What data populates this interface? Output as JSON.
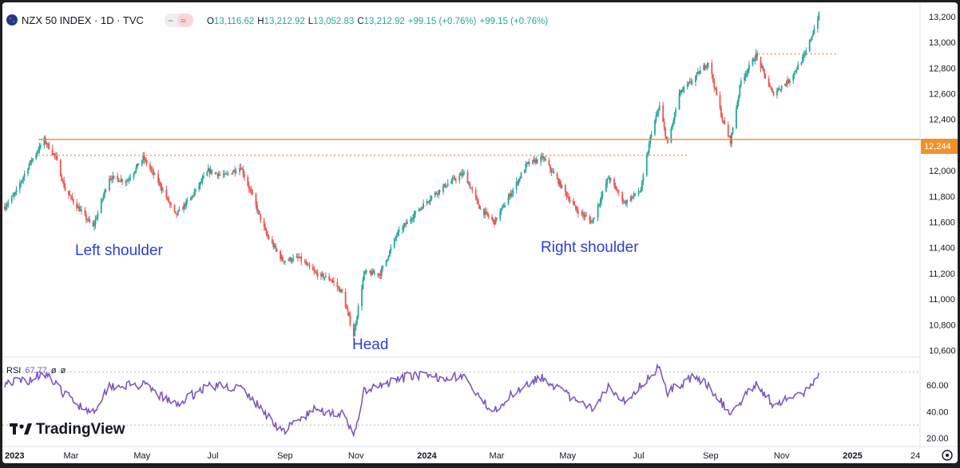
{
  "header": {
    "symbol": "NZX 50 INDEX · 1D · TVC",
    "open_label": "O",
    "open": "13,116.62",
    "high_label": "H",
    "high": "13,212.92",
    "low_label": "L",
    "low": "13,052.83",
    "close_label": "C",
    "close": "13,212.92",
    "change": "+99.15 (+0.76%)",
    "change2": "+99.15 (+0.76%)",
    "flag_icon": "new-zealand-flag-icon"
  },
  "rsi": {
    "label": "RSI",
    "value": "67.77",
    "extra1": "ø",
    "extra2": "ø",
    "color": "#7e57c2"
  },
  "branding": {
    "logo_text": "TradingView"
  },
  "colors": {
    "up": "#26a69a",
    "down": "#ef5350",
    "level_line": "#f0922b",
    "annotation": "#2b3fd6"
  },
  "price_badge": "12,244",
  "annotations": {
    "left_shoulder": "Left shoulder",
    "head": "Head",
    "right_shoulder": "Right shoulder"
  },
  "chart_data": [
    {
      "type": "candlestick",
      "title": "NZX 50 INDEX · 1D · TVC",
      "x_range": [
        "2023-01-01",
        "2025-02-28"
      ],
      "y_range": [
        10560,
        13280
      ],
      "y_ticks": [
        "13,200",
        "13,000",
        "12,800",
        "12,600",
        "12,400",
        "12,200",
        "12,000",
        "11,800",
        "11,600",
        "11,400",
        "11,200",
        "11,000",
        "10,800",
        "10,600"
      ],
      "y_tick_values": [
        13200,
        13000,
        12800,
        12600,
        12400,
        12200,
        12000,
        11800,
        11600,
        11400,
        11200,
        11000,
        10800,
        10600
      ],
      "x_ticks": [
        {
          "label": "2023",
          "date": "2023-01-01",
          "bold": true
        },
        {
          "label": "Mar",
          "date": "2023-03-01",
          "bold": false
        },
        {
          "label": "May",
          "date": "2023-05-01",
          "bold": false
        },
        {
          "label": "Jul",
          "date": "2023-07-01",
          "bold": false
        },
        {
          "label": "Sep",
          "date": "2023-09-01",
          "bold": false
        },
        {
          "label": "Nov",
          "date": "2023-11-01",
          "bold": false
        },
        {
          "label": "2024",
          "date": "2024-01-01",
          "bold": true
        },
        {
          "label": "Mar",
          "date": "2024-03-01",
          "bold": false
        },
        {
          "label": "May",
          "date": "2024-05-01",
          "bold": false
        },
        {
          "label": "Jul",
          "date": "2024-07-01",
          "bold": false
        },
        {
          "label": "Sep",
          "date": "2024-09-01",
          "bold": false
        },
        {
          "label": "Nov",
          "date": "2024-11-01",
          "bold": false
        },
        {
          "label": "2025",
          "date": "2025-01-01",
          "bold": true
        },
        {
          "label": "24",
          "date": "2025-02-24",
          "bold": false
        }
      ],
      "levels": [
        {
          "value": 12244,
          "style": "solid",
          "from": "2023-02-01",
          "to": "2025-02-28",
          "badge": "12,244"
        },
        {
          "value": 12120,
          "style": "dotted",
          "from": "2023-02-01",
          "to": "2024-08-12"
        },
        {
          "value": 12910,
          "style": "dotted",
          "from": "2024-10-12",
          "to": "2024-12-20"
        }
      ],
      "price_path": [
        [
          "2023-01-03",
          11720
        ],
        [
          "2023-01-12",
          11820
        ],
        [
          "2023-01-24",
          12050
        ],
        [
          "2023-02-06",
          12240
        ],
        [
          "2023-02-16",
          12100
        ],
        [
          "2023-02-24",
          11850
        ],
        [
          "2023-03-08",
          11700
        ],
        [
          "2023-03-20",
          11560
        ],
        [
          "2023-04-03",
          11950
        ],
        [
          "2023-04-18",
          11920
        ],
        [
          "2023-05-02",
          12100
        ],
        [
          "2023-05-16",
          11900
        ],
        [
          "2023-05-30",
          11650
        ],
        [
          "2023-06-13",
          11800
        ],
        [
          "2023-06-27",
          12000
        ],
        [
          "2023-07-11",
          11960
        ],
        [
          "2023-07-25",
          12030
        ],
        [
          "2023-08-04",
          11800
        ],
        [
          "2023-08-16",
          11500
        ],
        [
          "2023-08-30",
          11300
        ],
        [
          "2023-09-13",
          11320
        ],
        [
          "2023-09-27",
          11200
        ],
        [
          "2023-10-11",
          11150
        ],
        [
          "2023-10-20",
          11050
        ],
        [
          "2023-10-30",
          10720
        ],
        [
          "2023-11-08",
          11200
        ],
        [
          "2023-11-22",
          11200
        ],
        [
          "2023-12-06",
          11500
        ],
        [
          "2023-12-20",
          11650
        ],
        [
          "2024-01-05",
          11800
        ],
        [
          "2024-01-19",
          11900
        ],
        [
          "2024-02-02",
          11980
        ],
        [
          "2024-02-16",
          11700
        ],
        [
          "2024-02-28",
          11600
        ],
        [
          "2024-03-13",
          11820
        ],
        [
          "2024-03-27",
          12050
        ],
        [
          "2024-04-10",
          12100
        ],
        [
          "2024-04-24",
          11900
        ],
        [
          "2024-05-08",
          11700
        ],
        [
          "2024-05-22",
          11600
        ],
        [
          "2024-06-05",
          11950
        ],
        [
          "2024-06-19",
          11750
        ],
        [
          "2024-07-03",
          11850
        ],
        [
          "2024-07-12",
          12300
        ],
        [
          "2024-07-19",
          12500
        ],
        [
          "2024-07-26",
          12200
        ],
        [
          "2024-08-05",
          12600
        ],
        [
          "2024-08-16",
          12700
        ],
        [
          "2024-08-30",
          12850
        ],
        [
          "2024-09-11",
          12400
        ],
        [
          "2024-09-18",
          12230
        ],
        [
          "2024-09-27",
          12700
        ],
        [
          "2024-10-10",
          12900
        ],
        [
          "2024-10-24",
          12600
        ],
        [
          "2024-11-07",
          12700
        ],
        [
          "2024-11-21",
          12900
        ],
        [
          "2024-12-03",
          13212
        ]
      ],
      "rsi_path": [
        [
          "2023-01-03",
          62
        ],
        [
          "2023-01-24",
          64
        ],
        [
          "2023-02-06",
          70
        ],
        [
          "2023-02-20",
          56
        ],
        [
          "2023-03-08",
          45
        ],
        [
          "2023-03-20",
          40
        ],
        [
          "2023-04-03",
          60
        ],
        [
          "2023-05-02",
          60
        ],
        [
          "2023-05-30",
          45
        ],
        [
          "2023-06-27",
          60
        ],
        [
          "2023-07-25",
          58
        ],
        [
          "2023-08-16",
          38
        ],
        [
          "2023-08-30",
          25
        ],
        [
          "2023-09-27",
          42
        ],
        [
          "2023-10-20",
          38
        ],
        [
          "2023-10-30",
          22
        ],
        [
          "2023-11-08",
          55
        ],
        [
          "2023-12-20",
          68
        ],
        [
          "2024-01-05",
          66
        ],
        [
          "2024-02-02",
          67
        ],
        [
          "2024-02-16",
          48
        ],
        [
          "2024-02-28",
          42
        ],
        [
          "2024-03-27",
          62
        ],
        [
          "2024-04-10",
          66
        ],
        [
          "2024-05-08",
          48
        ],
        [
          "2024-05-22",
          42
        ],
        [
          "2024-06-05",
          60
        ],
        [
          "2024-06-19",
          48
        ],
        [
          "2024-07-12",
          68
        ],
        [
          "2024-07-19",
          74
        ],
        [
          "2024-07-26",
          55
        ],
        [
          "2024-08-16",
          66
        ],
        [
          "2024-08-30",
          60
        ],
        [
          "2024-09-18",
          38
        ],
        [
          "2024-10-10",
          62
        ],
        [
          "2024-10-24",
          46
        ],
        [
          "2024-11-21",
          54
        ],
        [
          "2024-12-03",
          67.77
        ]
      ],
      "rsi_y_ticks": [
        "60.00",
        "40.00",
        "20.00"
      ],
      "rsi_y_tick_values": [
        60,
        40,
        20
      ],
      "rsi_range": [
        15,
        80
      ],
      "rsi_guide_lines": [
        70,
        30
      ]
    }
  ]
}
